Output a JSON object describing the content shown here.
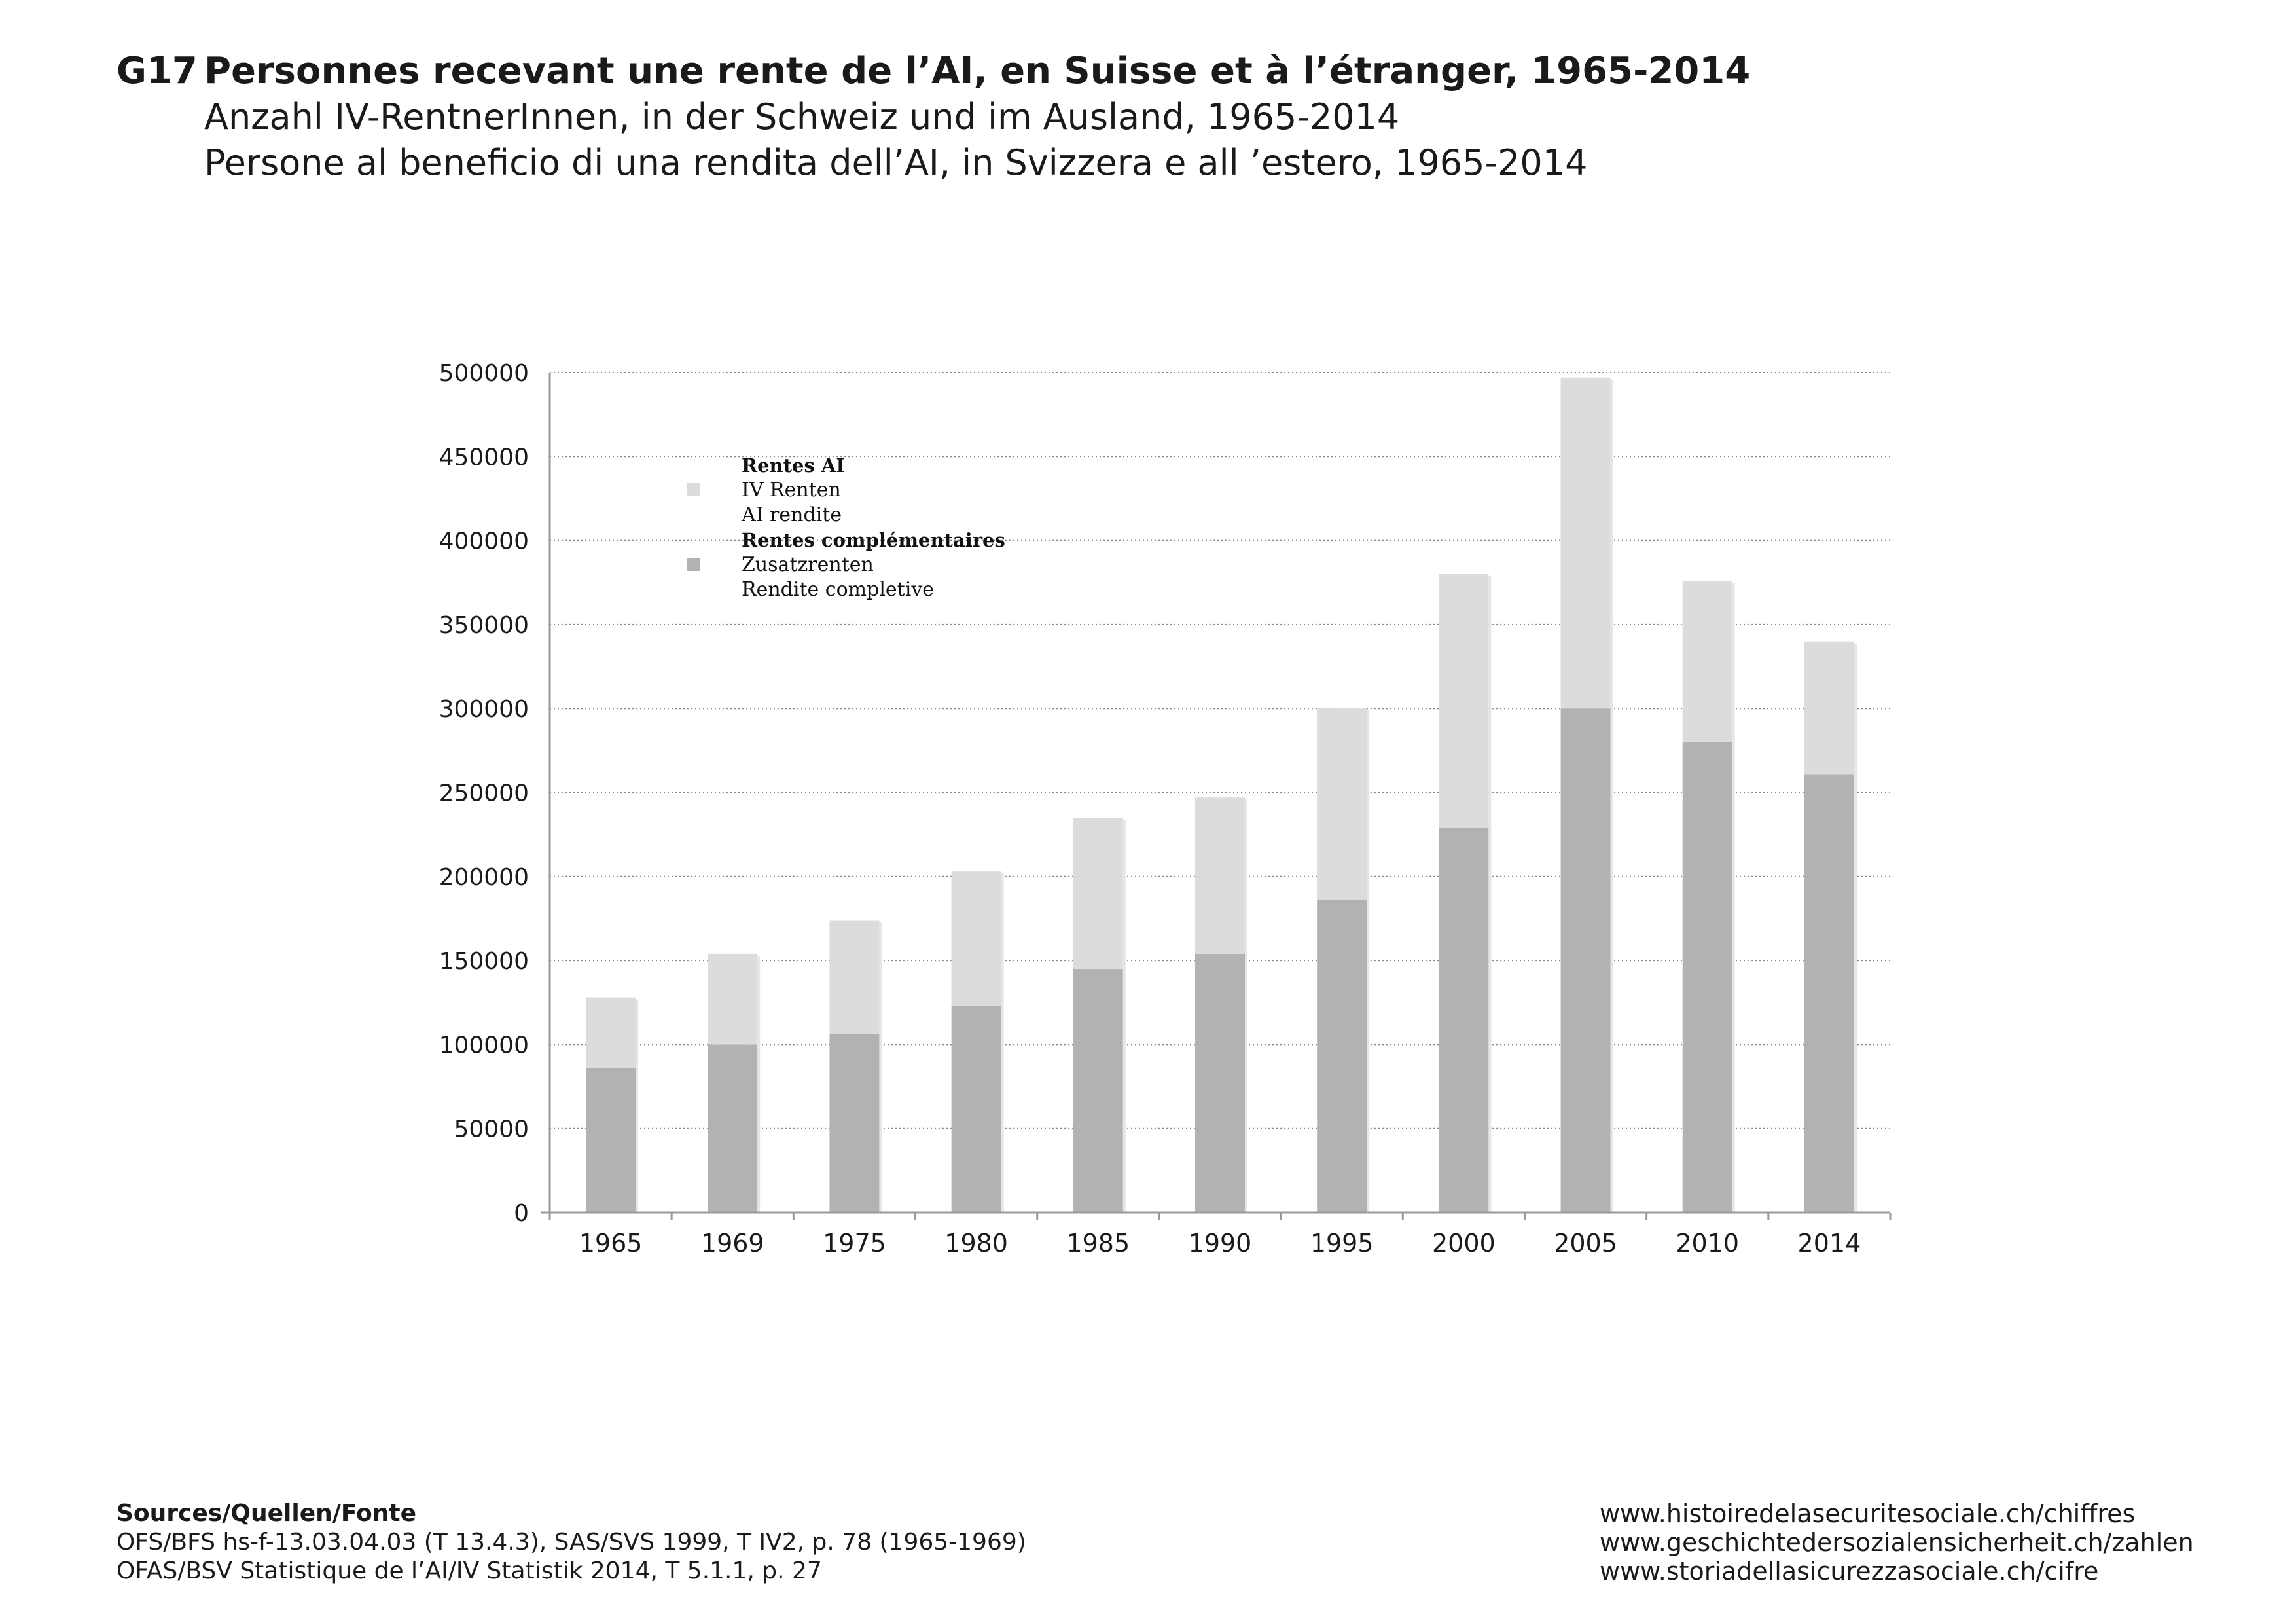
{
  "header": {
    "code": "G17",
    "title_fr": "Personnes recevant une rente de l’AI, en Suisse et à l’étranger, 1965-2014",
    "title_de": "Anzahl IV-RentnerInnen, in der Schweiz und im Ausland, 1965-2014",
    "title_it": "Persone al beneficio di una rendita dell’AI, in Svizzera e all ’estero, 1965-2014"
  },
  "legend": {
    "group1_title": "Rentes AI",
    "group1_line1": "IV Renten",
    "group1_line2": "AI rendite",
    "group2_title": "Rentes complémentaires",
    "group2_line1": "Zusatzrenten",
    "group2_line2": "Rendite completive"
  },
  "colors": {
    "rentes_ai": "#dcdcdc",
    "rentes_complementaires": "#b2b2b2",
    "grid": "#888888",
    "axis": "#999999"
  },
  "chart_data": {
    "type": "bar",
    "stacked": true,
    "categories": [
      "1965",
      "1969",
      "1975",
      "1980",
      "1985",
      "1990",
      "1995",
      "2000",
      "2005",
      "2010",
      "2014"
    ],
    "series": [
      {
        "name": "Rentes complémentaires / Zusatzrenten / Rendite completive",
        "values": [
          86000,
          100000,
          106000,
          123000,
          145000,
          154000,
          186000,
          229000,
          300000,
          280000,
          261000
        ]
      },
      {
        "name": "Rentes AI / IV Renten / AI rendite",
        "values": [
          42000,
          54000,
          68000,
          80000,
          90000,
          93000,
          114000,
          151000,
          197000,
          96000,
          79000
        ]
      }
    ],
    "ylim": [
      0,
      500000
    ],
    "yticks": [
      0,
      50000,
      100000,
      150000,
      200000,
      250000,
      300000,
      350000,
      400000,
      450000,
      500000
    ],
    "grid": "horizontal dotted",
    "legend_position": "top-left inside plot",
    "title": "",
    "xlabel": "",
    "ylabel": ""
  },
  "sources": {
    "heading": "Sources/Quellen/Fonte",
    "line1": "OFS/BFS hs-f-13.03.04.03 (T 13.4.3), SAS/SVS 1999, T IV2, p. 78 (1965-1969)",
    "line2": "OFAS/BSV Statistique de l’AI/IV Statistik 2014, T 5.1.1, p. 27"
  },
  "urls": {
    "fr": "www.histoiredelasecuritesociale.ch/chiffres",
    "de": "www.geschichtedersozialensicherheit.ch/zahlen",
    "it": "www.storiadellasicurezzasociale.ch/cifre"
  }
}
